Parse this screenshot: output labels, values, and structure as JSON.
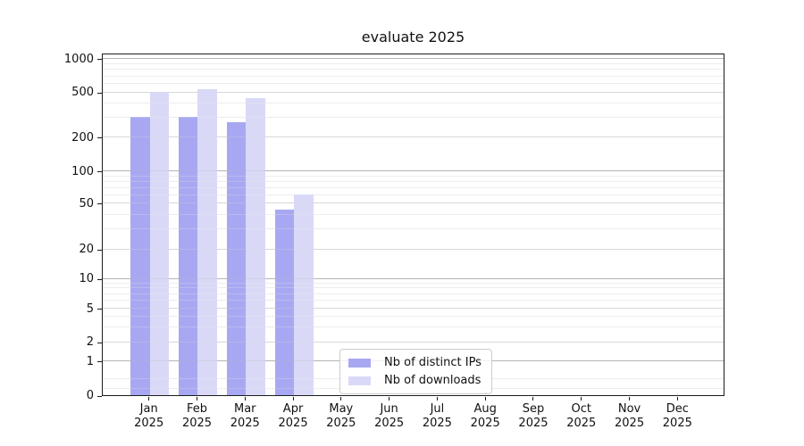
{
  "chart_data": {
    "type": "bar",
    "title": "evaluate 2025",
    "year_label": "2025",
    "categories": [
      "Jan",
      "Feb",
      "Mar",
      "Apr",
      "May",
      "Jun",
      "Jul",
      "Aug",
      "Sep",
      "Oct",
      "Nov",
      "Dec"
    ],
    "series": [
      {
        "name": "Nb of distinct IPs",
        "color": "#a8a8f2",
        "values": [
          305,
          300,
          270,
          44,
          0,
          0,
          0,
          0,
          0,
          0,
          0,
          0
        ]
      },
      {
        "name": "Nb of downloads",
        "color": "#d9d9f7",
        "values": [
          500,
          530,
          440,
          60,
          0,
          0,
          0,
          0,
          0,
          0,
          0,
          0
        ]
      }
    ],
    "xlabel": "",
    "ylabel": "",
    "yscale": "symlog",
    "yticks": [
      0,
      1,
      2,
      5,
      10,
      20,
      50,
      100,
      200,
      500,
      1000
    ],
    "ylim": [
      0,
      1140
    ],
    "grid": true,
    "legend_position": "lower center",
    "legend": [
      "Nb of distinct IPs",
      "Nb of downloads"
    ]
  }
}
